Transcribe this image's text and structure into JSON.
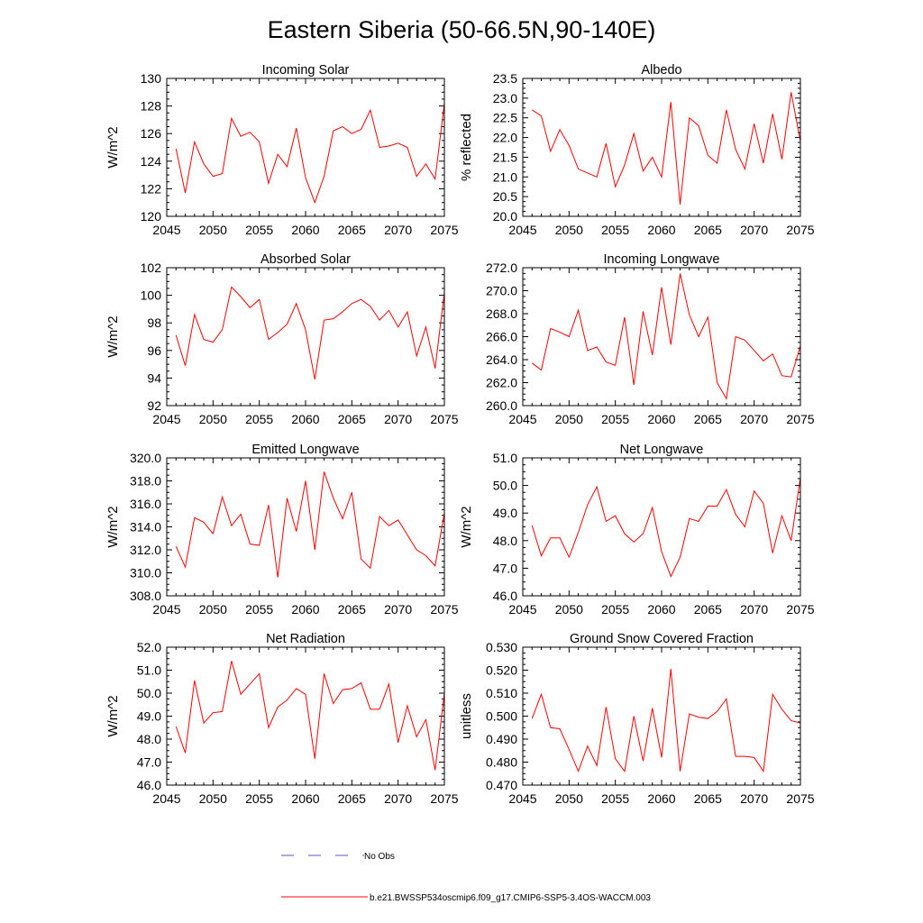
{
  "figure": {
    "title": "Eastern Siberia (50-66.5N,90-140E)"
  },
  "legend": [
    {
      "label": "No Obs",
      "color": "#5555cc",
      "dash": "dashed"
    },
    {
      "label": "b.e21.BWSSP534oscmip6.f09_g17.CMIP6-SSP5-3.4OS-WACCM.003",
      "color": "#ff0000",
      "dash": "solid"
    }
  ],
  "chart_data": [
    {
      "type": "line",
      "title": "Incoming Solar",
      "ylabel": "W/m^2",
      "xlim": [
        2045,
        2075
      ],
      "ylim": [
        120,
        130
      ],
      "xticks": [
        "2045",
        "2050",
        "2055",
        "2060",
        "2065",
        "2070",
        "2075"
      ],
      "yticks": [
        "120",
        "122",
        "124",
        "126",
        "128",
        "130"
      ],
      "x": [
        2046,
        2047,
        2048,
        2049,
        2050,
        2051,
        2052,
        2053,
        2054,
        2055,
        2056,
        2057,
        2058,
        2059,
        2060,
        2061,
        2062,
        2063,
        2064,
        2065,
        2066,
        2067,
        2068,
        2069,
        2070,
        2071,
        2072,
        2073,
        2074,
        2075
      ],
      "series": [
        {
          "name": "b.e21.BWSSP534oscmip6.f09_g17.CMIP6-SSP5-3.4OS-WACCM.003",
          "color": "#ff0000",
          "values": [
            124.9,
            121.7,
            125.4,
            123.8,
            122.9,
            123.1,
            127.1,
            125.8,
            126.1,
            125.4,
            122.4,
            124.5,
            123.6,
            126.4,
            122.8,
            121.0,
            122.9,
            126.2,
            126.5,
            126.0,
            126.3,
            127.7,
            125.0,
            125.1,
            125.3,
            125.0,
            122.9,
            123.8,
            122.7,
            128.2
          ]
        }
      ]
    },
    {
      "type": "line",
      "title": "Albedo",
      "ylabel": "% reflected",
      "xlim": [
        2045,
        2075
      ],
      "ylim": [
        20.0,
        23.5
      ],
      "xticks": [
        "2045",
        "2050",
        "2055",
        "2060",
        "2065",
        "2070",
        "2075"
      ],
      "yticks": [
        "20.0",
        "20.5",
        "21.0",
        "21.5",
        "22.0",
        "22.5",
        "23.0",
        "23.5"
      ],
      "x": [
        2046,
        2047,
        2048,
        2049,
        2050,
        2051,
        2052,
        2053,
        2054,
        2055,
        2056,
        2057,
        2058,
        2059,
        2060,
        2061,
        2062,
        2063,
        2064,
        2065,
        2066,
        2067,
        2068,
        2069,
        2070,
        2071,
        2072,
        2073,
        2074,
        2075
      ],
      "series": [
        {
          "name": "b.e21.BWSSP534oscmip6.f09_g17.CMIP6-SSP5-3.4OS-WACCM.003",
          "color": "#ff0000",
          "values": [
            22.7,
            22.55,
            21.65,
            22.2,
            21.8,
            21.2,
            21.1,
            21.0,
            21.85,
            20.75,
            21.3,
            22.1,
            21.15,
            21.5,
            21.0,
            22.9,
            20.3,
            22.5,
            22.3,
            21.55,
            21.35,
            22.7,
            21.7,
            21.2,
            22.35,
            21.35,
            22.6,
            21.45,
            23.15,
            21.9
          ]
        }
      ]
    },
    {
      "type": "line",
      "title": "Absorbed Solar",
      "ylabel": "W/m^2",
      "xlim": [
        2045,
        2075
      ],
      "ylim": [
        92,
        102
      ],
      "xticks": [
        "2045",
        "2050",
        "2055",
        "2060",
        "2065",
        "2070",
        "2075"
      ],
      "yticks": [
        "92",
        "94",
        "96",
        "98",
        "100",
        "102"
      ],
      "x": [
        2046,
        2047,
        2048,
        2049,
        2050,
        2051,
        2052,
        2053,
        2054,
        2055,
        2056,
        2057,
        2058,
        2059,
        2060,
        2061,
        2062,
        2063,
        2064,
        2065,
        2066,
        2067,
        2068,
        2069,
        2070,
        2071,
        2072,
        2073,
        2074,
        2075
      ],
      "series": [
        {
          "name": "b.e21.BWSSP534oscmip6.f09_g17.CMIP6-SSP5-3.4OS-WACCM.003",
          "color": "#ff0000",
          "values": [
            97.1,
            94.9,
            98.6,
            96.8,
            96.6,
            97.5,
            100.6,
            99.9,
            99.1,
            99.7,
            96.8,
            97.3,
            97.9,
            99.4,
            97.5,
            93.9,
            98.2,
            98.3,
            98.8,
            99.4,
            99.7,
            99.2,
            98.2,
            98.9,
            97.7,
            98.8,
            95.6,
            97.7,
            94.7,
            100.2
          ]
        }
      ]
    },
    {
      "type": "line",
      "title": "Incoming Longwave",
      "ylabel": "",
      "xlim": [
        2045,
        2075
      ],
      "ylim": [
        260.0,
        272.0
      ],
      "xticks": [
        "2045",
        "2050",
        "2055",
        "2060",
        "2065",
        "2070",
        "2075"
      ],
      "yticks": [
        "260.0",
        "262.0",
        "264.0",
        "266.0",
        "268.0",
        "270.0",
        "272.0"
      ],
      "x": [
        2046,
        2047,
        2048,
        2049,
        2050,
        2051,
        2052,
        2053,
        2054,
        2055,
        2056,
        2057,
        2058,
        2059,
        2060,
        2061,
        2062,
        2063,
        2064,
        2065,
        2066,
        2067,
        2068,
        2069,
        2070,
        2071,
        2072,
        2073,
        2074,
        2075
      ],
      "series": [
        {
          "name": "b.e21.BWSSP534oscmip6.f09_g17.CMIP6-SSP5-3.4OS-WACCM.003",
          "color": "#ff0000",
          "values": [
            263.7,
            263.1,
            266.7,
            266.4,
            266.0,
            268.3,
            264.8,
            265.1,
            263.8,
            263.5,
            267.7,
            261.8,
            268.2,
            264.4,
            270.3,
            265.3,
            271.5,
            267.9,
            266.0,
            267.7,
            262.0,
            260.6,
            266.0,
            265.7,
            264.8,
            263.9,
            264.5,
            262.6,
            262.5,
            265.2
          ]
        }
      ]
    },
    {
      "type": "line",
      "title": "Emitted Longwave",
      "ylabel": "W/m^2",
      "xlim": [
        2045,
        2075
      ],
      "ylim": [
        308.0,
        320.0
      ],
      "xticks": [
        "2045",
        "2050",
        "2055",
        "2060",
        "2065",
        "2070",
        "2075"
      ],
      "yticks": [
        "308.0",
        "310.0",
        "312.0",
        "314.0",
        "316.0",
        "318.0",
        "320.0"
      ],
      "x": [
        2046,
        2047,
        2048,
        2049,
        2050,
        2051,
        2052,
        2053,
        2054,
        2055,
        2056,
        2057,
        2058,
        2059,
        2060,
        2061,
        2062,
        2063,
        2064,
        2065,
        2066,
        2067,
        2068,
        2069,
        2070,
        2071,
        2072,
        2073,
        2074,
        2075
      ],
      "series": [
        {
          "name": "b.e21.BWSSP534oscmip6.f09_g17.CMIP6-SSP5-3.4OS-WACCM.003",
          "color": "#ff0000",
          "values": [
            312.3,
            310.5,
            314.8,
            314.4,
            313.4,
            316.6,
            314.1,
            315.1,
            312.5,
            312.4,
            315.9,
            309.6,
            316.5,
            313.6,
            318.0,
            312.0,
            318.8,
            316.5,
            314.7,
            317.0,
            311.2,
            310.4,
            314.9,
            314.1,
            314.6,
            313.3,
            312.0,
            311.5,
            310.6,
            315.2
          ]
        }
      ]
    },
    {
      "type": "line",
      "title": "Net Longwave",
      "ylabel": "W/m^2",
      "xlim": [
        2045,
        2075
      ],
      "ylim": [
        46.0,
        51.0
      ],
      "xticks": [
        "2045",
        "2050",
        "2055",
        "2060",
        "2065",
        "2070",
        "2075"
      ],
      "yticks": [
        "46.0",
        "47.0",
        "48.0",
        "49.0",
        "50.0",
        "51.0"
      ],
      "x": [
        2046,
        2047,
        2048,
        2049,
        2050,
        2051,
        2052,
        2053,
        2054,
        2055,
        2056,
        2057,
        2058,
        2059,
        2060,
        2061,
        2062,
        2063,
        2064,
        2065,
        2066,
        2067,
        2068,
        2069,
        2070,
        2071,
        2072,
        2073,
        2074,
        2075
      ],
      "series": [
        {
          "name": "b.e21.BWSSP534oscmip6.f09_g17.CMIP6-SSP5-3.4OS-WACCM.003",
          "color": "#ff0000",
          "values": [
            48.55,
            47.45,
            48.1,
            48.1,
            47.4,
            48.3,
            49.3,
            49.95,
            48.7,
            48.9,
            48.25,
            47.95,
            48.25,
            49.2,
            47.6,
            46.7,
            47.4,
            48.8,
            48.7,
            49.25,
            49.25,
            49.85,
            48.95,
            48.5,
            49.8,
            49.35,
            47.55,
            48.9,
            48.0,
            50.3
          ]
        }
      ]
    },
    {
      "type": "line",
      "title": "Net Radiation",
      "ylabel": "W/m^2",
      "xlim": [
        2045,
        2075
      ],
      "ylim": [
        46.0,
        52.0
      ],
      "xticks": [
        "2045",
        "2050",
        "2055",
        "2060",
        "2065",
        "2070",
        "2075"
      ],
      "yticks": [
        "46.0",
        "47.0",
        "48.0",
        "49.0",
        "50.0",
        "51.0",
        "52.0"
      ],
      "x": [
        2046,
        2047,
        2048,
        2049,
        2050,
        2051,
        2052,
        2053,
        2054,
        2055,
        2056,
        2057,
        2058,
        2059,
        2060,
        2061,
        2062,
        2063,
        2064,
        2065,
        2066,
        2067,
        2068,
        2069,
        2070,
        2071,
        2072,
        2073,
        2074,
        2075
      ],
      "series": [
        {
          "name": "b.e21.BWSSP534oscmip6.f09_g17.CMIP6-SSP5-3.4OS-WACCM.003",
          "color": "#ff0000",
          "values": [
            48.55,
            47.4,
            50.55,
            48.7,
            49.15,
            49.2,
            51.4,
            49.95,
            50.4,
            50.85,
            48.5,
            49.4,
            49.7,
            50.2,
            49.95,
            47.15,
            50.85,
            49.55,
            50.15,
            50.2,
            50.45,
            49.3,
            49.3,
            50.4,
            47.85,
            49.45,
            48.1,
            48.85,
            46.65,
            50.0
          ]
        }
      ]
    },
    {
      "type": "line",
      "title": "Ground Snow Covered Fraction",
      "ylabel": "unitless",
      "xlim": [
        2045,
        2075
      ],
      "ylim": [
        0.47,
        0.53
      ],
      "xticks": [
        "2045",
        "2050",
        "2055",
        "2060",
        "2065",
        "2070",
        "2075"
      ],
      "yticks": [
        "0.470",
        "0.480",
        "0.490",
        "0.500",
        "0.510",
        "0.520",
        "0.530"
      ],
      "x": [
        2046,
        2047,
        2048,
        2049,
        2050,
        2051,
        2052,
        2053,
        2054,
        2055,
        2056,
        2057,
        2058,
        2059,
        2060,
        2061,
        2062,
        2063,
        2064,
        2065,
        2066,
        2067,
        2068,
        2069,
        2070,
        2071,
        2072,
        2073,
        2074,
        2075
      ],
      "series": [
        {
          "name": "b.e21.BWSSP534oscmip6.f09_g17.CMIP6-SSP5-3.4OS-WACCM.003",
          "color": "#ff0000",
          "values": [
            0.499,
            0.5095,
            0.495,
            0.4945,
            0.4855,
            0.476,
            0.487,
            0.4785,
            0.504,
            0.4815,
            0.476,
            0.5,
            0.4805,
            0.5035,
            0.482,
            0.5205,
            0.476,
            0.501,
            0.4995,
            0.499,
            0.502,
            0.5075,
            0.4825,
            0.4825,
            0.482,
            0.476,
            0.5095,
            0.503,
            0.498,
            0.497
          ]
        }
      ]
    }
  ]
}
